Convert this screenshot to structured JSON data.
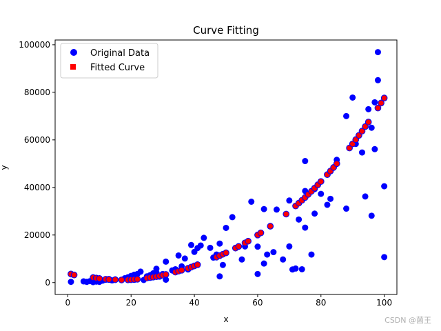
{
  "watermark": "CSDN @菌王",
  "chart_data": {
    "type": "scatter",
    "title": "Curve Fitting",
    "xlabel": "x",
    "ylabel": "y",
    "xlim": [
      -4,
      104
    ],
    "ylim": [
      -5000,
      102000
    ],
    "xticks": [
      {
        "value": 0,
        "label": "0"
      },
      {
        "value": 20,
        "label": "20"
      },
      {
        "value": 40,
        "label": "40"
      },
      {
        "value": 60,
        "label": "60"
      },
      {
        "value": 80,
        "label": "80"
      },
      {
        "value": 100,
        "label": "100"
      }
    ],
    "yticks": [
      {
        "value": 0,
        "label": "0"
      },
      {
        "value": 20000,
        "label": "20000"
      },
      {
        "value": 40000,
        "label": "40000"
      },
      {
        "value": 60000,
        "label": "60000"
      },
      {
        "value": 80000,
        "label": "80000"
      },
      {
        "value": 100000,
        "label": "100000"
      }
    ],
    "grid": false,
    "legend_position": "top-left",
    "series": [
      {
        "name": "Original Data",
        "marker": "circle",
        "color": "#0000ff",
        "x": [
          1,
          5,
          6,
          7,
          8,
          9,
          10,
          11,
          12,
          13,
          14,
          15,
          17,
          18,
          19,
          20,
          21,
          22,
          23,
          24,
          25,
          26,
          27,
          28,
          28,
          29,
          30,
          31,
          31,
          33,
          34,
          35,
          36,
          37,
          38,
          39,
          40,
          41,
          42,
          43,
          45,
          46,
          47,
          48,
          48,
          49,
          50,
          52,
          55,
          56,
          58,
          60,
          60,
          62,
          62,
          63,
          65,
          66,
          68,
          70,
          70,
          71,
          72,
          73,
          74,
          75,
          75,
          75,
          77,
          78,
          78,
          80,
          82,
          83,
          85,
          88,
          88,
          90,
          91,
          93,
          94,
          95,
          96,
          96,
          97,
          97,
          98,
          98,
          100,
          100
        ],
        "y": [
          300,
          500,
          300,
          600,
          200,
          400,
          300,
          800,
          1200,
          1500,
          900,
          1300,
          1100,
          1800,
          2200,
          2800,
          3300,
          3600,
          4600,
          1100,
          2600,
          3100,
          3900,
          4300,
          5800,
          2500,
          3600,
          1200,
          8800,
          5100,
          5600,
          11400,
          6800,
          10100,
          5500,
          15800,
          12900,
          14500,
          15600,
          18800,
          14600,
          10500,
          11800,
          16400,
          2600,
          7400,
          23000,
          27500,
          9700,
          15200,
          34000,
          15100,
          3600,
          30900,
          8000,
          11800,
          12800,
          30700,
          9700,
          34500,
          15200,
          5500,
          5900,
          26500,
          5600,
          38500,
          51100,
          23100,
          11800,
          39300,
          29000,
          37300,
          32700,
          35200,
          51600,
          31100,
          70000,
          77800,
          58300,
          54700,
          36200,
          72900,
          28100,
          65100,
          56100,
          75800,
          85100,
          96900,
          10700,
          40500
        ]
      },
      {
        "name": "Fitted Curve",
        "marker": "square",
        "color": "#ff0000",
        "edgecolor": "#0000ff",
        "x": [
          1,
          2,
          8,
          9,
          10,
          12,
          13,
          15,
          17,
          19,
          20,
          21,
          22,
          25,
          26,
          27,
          28,
          29,
          30,
          31,
          34,
          35,
          36,
          38,
          39,
          40,
          41,
          47,
          48,
          49,
          50,
          53,
          54,
          56,
          57,
          60,
          61,
          64,
          69,
          72,
          73,
          74,
          75,
          76,
          77,
          78,
          79,
          80,
          82,
          83,
          84,
          85,
          89,
          90,
          91,
          92,
          93,
          94,
          95,
          98,
          99,
          100
        ],
        "y": [
          3600,
          3200,
          2100,
          1900,
          1700,
          1400,
          1300,
          1200,
          1100,
          1150,
          1200,
          1300,
          1400,
          1900,
          2100,
          2300,
          2500,
          2800,
          3100,
          3400,
          4400,
          4800,
          5200,
          6000,
          6500,
          7000,
          7500,
          10700,
          11300,
          11900,
          12500,
          14500,
          15200,
          16700,
          17400,
          20000,
          20900,
          23700,
          28800,
          32200,
          33400,
          34600,
          35800,
          37100,
          38400,
          39700,
          41100,
          42500,
          45400,
          46900,
          48400,
          50000,
          56600,
          58300,
          60100,
          61900,
          63700,
          65600,
          67500,
          73400,
          75500,
          77600
        ]
      }
    ]
  }
}
